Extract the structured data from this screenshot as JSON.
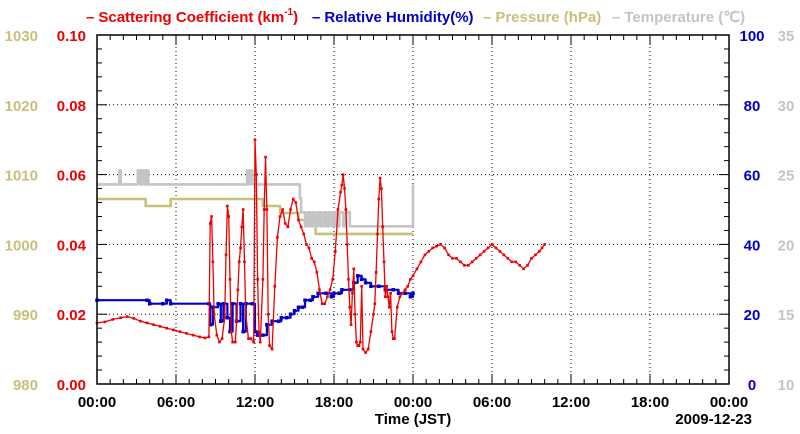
{
  "legend": {
    "scattering": {
      "label": "Scattering Coefficient (km",
      "sup": "-1",
      "close": ")",
      "color": "#ee0000"
    },
    "humidity": {
      "label": "Relative Humidity(%)",
      "color": "#0000cc"
    },
    "pressure": {
      "label": "Pressure (hPa)",
      "color": "#c8bf7a"
    },
    "temperature": {
      "label": "Temperature (℃)",
      "color": "#c4c4c4"
    },
    "dash": "–"
  },
  "footer": {
    "xlabel": "Time (JST)",
    "date": "2009-12-23"
  },
  "chart_data": {
    "type": "line",
    "title": "",
    "xlabel": "Time (JST)",
    "x_range_hours": [
      0,
      48
    ],
    "x_tick_labels": [
      "00:00",
      "06:00",
      "12:00",
      "18:00",
      "00:00",
      "06:00",
      "12:00",
      "18:00",
      "00:00"
    ],
    "grid": true,
    "axes": {
      "pressure": {
        "side": "left-outer",
        "range": [
          980,
          1030
        ],
        "ticks": [
          "980",
          "990",
          "1000",
          "1010",
          "1020",
          "1030"
        ],
        "color": "#c8bf7a"
      },
      "scattering": {
        "side": "left-inner",
        "range": [
          0,
          0.1
        ],
        "ticks": [
          "0.00",
          "0.02",
          "0.04",
          "0.06",
          "0.08",
          "0.10"
        ],
        "color": "#ee0000"
      },
      "humidity": {
        "side": "right-inner",
        "range": [
          0,
          100
        ],
        "ticks": [
          "0",
          "20",
          "40",
          "60",
          "80",
          "100"
        ],
        "color": "#0000cc"
      },
      "temperature": {
        "side": "right-outer",
        "range": [
          10,
          35
        ],
        "ticks": [
          "10",
          "15",
          "20",
          "25",
          "30",
          "35"
        ],
        "color": "#c4c4c4"
      }
    },
    "series": [
      {
        "name": "Pressure (hPa)",
        "axis": "pressure",
        "color": "#c8bf7a",
        "step": true,
        "points": [
          [
            0,
            1006.5
          ],
          [
            3.7,
            1005.5
          ],
          [
            5.6,
            1006.5
          ],
          [
            10.3,
            1006.5
          ],
          [
            12.5,
            1006.5
          ],
          [
            12.6,
            1005.5
          ],
          [
            13.8,
            1005.5
          ],
          [
            13.9,
            1004.5
          ],
          [
            15.2,
            1004.5
          ],
          [
            15.3,
            1003.5
          ],
          [
            16.5,
            1003.5
          ],
          [
            16.6,
            1001.5
          ],
          [
            24,
            1001.5
          ]
        ]
      },
      {
        "name": "Temperature (℃)",
        "axis": "temperature",
        "color": "#c4c4c4",
        "step": true,
        "points": [
          [
            0,
            24.3
          ],
          [
            1.6,
            24.3
          ],
          [
            1.7,
            25.3
          ],
          [
            1.8,
            24.3
          ],
          [
            3.0,
            24.3
          ],
          [
            3.1,
            25.3
          ],
          [
            3.3,
            24.3
          ],
          [
            3.4,
            25.3
          ],
          [
            3.6,
            24.3
          ],
          [
            3.7,
            25.3
          ],
          [
            3.9,
            24.3
          ],
          [
            10,
            24.3
          ],
          [
            11.3,
            24.3
          ],
          [
            11.4,
            25.3
          ],
          [
            11.5,
            24.3
          ],
          [
            11.6,
            25.3
          ],
          [
            11.8,
            24.3
          ],
          [
            15.3,
            24.3
          ],
          [
            15.4,
            23.3
          ],
          [
            15.5,
            22.3
          ],
          [
            15.7,
            22.3
          ],
          [
            15.8,
            21.3
          ],
          [
            16.0,
            22.3
          ],
          [
            16.2,
            21.3
          ],
          [
            16.4,
            22.3
          ],
          [
            16.6,
            21.3
          ],
          [
            16.8,
            22.3
          ],
          [
            17.0,
            21.3
          ],
          [
            17.2,
            22.3
          ],
          [
            17.4,
            21.3
          ],
          [
            17.6,
            22.3
          ],
          [
            17.8,
            21.3
          ],
          [
            18.0,
            22.3
          ],
          [
            18.2,
            21.3
          ],
          [
            18.4,
            22.3
          ],
          [
            18.6,
            22.3
          ],
          [
            18.7,
            21.3
          ],
          [
            18.9,
            22.3
          ],
          [
            19.2,
            21.3
          ],
          [
            19.7,
            21.3
          ],
          [
            19.8,
            21.3
          ],
          [
            24,
            21.3
          ],
          [
            24,
            24.3
          ]
        ]
      },
      {
        "name": "Relative Humidity(%)",
        "axis": "humidity",
        "color": "#0000cc",
        "step": true,
        "points": [
          [
            0,
            24
          ],
          [
            3.8,
            24
          ],
          [
            4.0,
            23
          ],
          [
            5.0,
            23
          ],
          [
            5.3,
            24
          ],
          [
            5.6,
            23
          ],
          [
            8.5,
            23
          ],
          [
            8.6,
            17
          ],
          [
            8.8,
            22
          ],
          [
            9.2,
            23
          ],
          [
            9.4,
            18
          ],
          [
            9.6,
            23
          ],
          [
            9.9,
            19
          ],
          [
            10.1,
            15
          ],
          [
            10.3,
            23
          ],
          [
            10.6,
            18
          ],
          [
            10.9,
            23
          ],
          [
            11.1,
            15
          ],
          [
            11.3,
            23
          ],
          [
            11.8,
            23
          ],
          [
            12.0,
            15
          ],
          [
            12.2,
            14
          ],
          [
            12.6,
            14
          ],
          [
            12.9,
            17
          ],
          [
            13.3,
            18
          ],
          [
            13.8,
            18
          ],
          [
            14.0,
            19
          ],
          [
            14.4,
            19
          ],
          [
            14.7,
            20
          ],
          [
            15.0,
            21
          ],
          [
            15.3,
            22
          ],
          [
            15.6,
            22
          ],
          [
            15.8,
            24
          ],
          [
            16.2,
            24
          ],
          [
            16.4,
            25
          ],
          [
            16.8,
            26
          ],
          [
            17.4,
            26
          ],
          [
            17.8,
            25
          ],
          [
            18.0,
            26
          ],
          [
            18.4,
            26
          ],
          [
            18.6,
            27
          ],
          [
            19.2,
            27
          ],
          [
            19.5,
            29
          ],
          [
            19.8,
            31
          ],
          [
            20.1,
            30
          ],
          [
            20.4,
            29
          ],
          [
            20.8,
            28
          ],
          [
            21.4,
            28
          ],
          [
            21.9,
            27
          ],
          [
            22.5,
            27
          ],
          [
            22.9,
            26
          ],
          [
            23.4,
            26
          ],
          [
            23.8,
            25
          ],
          [
            24.0,
            26
          ]
        ]
      },
      {
        "name": "Scattering Coefficient (km-1)",
        "axis": "scattering",
        "color": "#ee0000",
        "step": false,
        "points": [
          [
            0,
            0.0175
          ],
          [
            0.6,
            0.0178
          ],
          [
            1.2,
            0.0185
          ],
          [
            1.8,
            0.019
          ],
          [
            2.3,
            0.0193
          ],
          [
            2.8,
            0.0188
          ],
          [
            3.3,
            0.018
          ],
          [
            3.8,
            0.0175
          ],
          [
            4.3,
            0.017
          ],
          [
            4.8,
            0.0165
          ],
          [
            5.3,
            0.016
          ],
          [
            5.8,
            0.0155
          ],
          [
            6.3,
            0.015
          ],
          [
            6.8,
            0.0145
          ],
          [
            7.3,
            0.014
          ],
          [
            7.8,
            0.0135
          ],
          [
            8.2,
            0.0132
          ],
          [
            8.5,
            0.0135
          ],
          [
            8.6,
            0.046
          ],
          [
            8.7,
            0.048
          ],
          [
            8.8,
            0.035
          ],
          [
            8.9,
            0.02
          ],
          [
            9.1,
            0.014
          ],
          [
            9.3,
            0.012
          ],
          [
            9.5,
            0.013
          ],
          [
            9.7,
            0.019
          ],
          [
            9.8,
            0.037
          ],
          [
            9.9,
            0.051
          ],
          [
            10.0,
            0.048
          ],
          [
            10.1,
            0.03
          ],
          [
            10.2,
            0.015
          ],
          [
            10.3,
            0.012
          ],
          [
            10.5,
            0.012
          ],
          [
            10.6,
            0.018
          ],
          [
            10.7,
            0.027
          ],
          [
            10.8,
            0.035
          ],
          [
            10.9,
            0.039
          ],
          [
            11.0,
            0.045
          ],
          [
            11.1,
            0.05
          ],
          [
            11.2,
            0.035
          ],
          [
            11.3,
            0.02
          ],
          [
            11.5,
            0.013
          ],
          [
            11.7,
            0.013
          ],
          [
            11.9,
            0.012
          ],
          [
            12.0,
            0.07
          ],
          [
            12.1,
            0.06
          ],
          [
            12.2,
            0.03
          ],
          [
            12.3,
            0.015
          ],
          [
            12.4,
            0.012
          ],
          [
            12.6,
            0.03
          ],
          [
            12.7,
            0.05
          ],
          [
            12.8,
            0.065
          ],
          [
            12.9,
            0.05
          ],
          [
            13.0,
            0.02
          ],
          [
            13.1,
            0.011
          ],
          [
            13.3,
            0.01
          ],
          [
            13.5,
            0.028
          ],
          [
            13.7,
            0.042
          ],
          [
            13.9,
            0.048
          ],
          [
            14.1,
            0.05
          ],
          [
            14.3,
            0.046
          ],
          [
            14.5,
            0.045
          ],
          [
            14.7,
            0.05
          ],
          [
            14.9,
            0.053
          ],
          [
            15.1,
            0.052
          ],
          [
            15.3,
            0.047
          ],
          [
            15.5,
            0.045
          ],
          [
            15.7,
            0.043
          ],
          [
            15.9,
            0.04
          ],
          [
            16.1,
            0.039
          ],
          [
            16.3,
            0.036
          ],
          [
            16.5,
            0.035
          ],
          [
            16.7,
            0.032
          ],
          [
            16.9,
            0.027
          ],
          [
            17.1,
            0.023
          ],
          [
            17.3,
            0.023
          ],
          [
            17.5,
            0.025
          ],
          [
            17.7,
            0.027
          ],
          [
            17.9,
            0.03
          ],
          [
            18.1,
            0.038
          ],
          [
            18.3,
            0.05
          ],
          [
            18.5,
            0.055
          ],
          [
            18.6,
            0.057
          ],
          [
            18.7,
            0.06
          ],
          [
            18.8,
            0.056
          ],
          [
            18.9,
            0.05
          ],
          [
            19.0,
            0.04
          ],
          [
            19.1,
            0.03
          ],
          [
            19.2,
            0.022
          ],
          [
            19.3,
            0.017
          ],
          [
            19.4,
            0.026
          ],
          [
            19.5,
            0.033
          ],
          [
            19.6,
            0.02
          ],
          [
            19.7,
            0.012
          ],
          [
            19.8,
            0.011
          ],
          [
            19.9,
            0.011
          ],
          [
            20.0,
            0.012
          ],
          [
            20.1,
            0.028
          ],
          [
            20.2,
            0.01
          ],
          [
            20.4,
            0.009
          ],
          [
            20.6,
            0.01
          ],
          [
            20.8,
            0.015
          ],
          [
            21.0,
            0.02
          ],
          [
            21.1,
            0.023
          ],
          [
            21.2,
            0.032
          ],
          [
            21.3,
            0.043
          ],
          [
            21.4,
            0.053
          ],
          [
            21.5,
            0.059
          ],
          [
            21.6,
            0.056
          ],
          [
            21.7,
            0.045
          ],
          [
            21.8,
            0.035
          ],
          [
            21.9,
            0.025
          ],
          [
            22.0,
            0.028
          ],
          [
            22.1,
            0.025
          ],
          [
            22.2,
            0.022
          ],
          [
            22.3,
            0.026
          ],
          [
            22.4,
            0.015
          ],
          [
            22.5,
            0.013
          ],
          [
            22.6,
            0.013
          ],
          [
            22.8,
            0.022
          ],
          [
            23.0,
            0.025
          ],
          [
            23.2,
            0.026
          ],
          [
            23.4,
            0.027
          ],
          [
            23.6,
            0.028
          ],
          [
            23.8,
            0.03
          ],
          [
            24.0,
            0.031
          ],
          [
            24.3,
            0.033
          ],
          [
            24.6,
            0.035
          ],
          [
            24.9,
            0.037
          ],
          [
            25.2,
            0.038
          ],
          [
            25.5,
            0.039
          ],
          [
            25.8,
            0.0395
          ],
          [
            26.1,
            0.04
          ],
          [
            26.4,
            0.039
          ],
          [
            26.7,
            0.037
          ],
          [
            27.0,
            0.036
          ],
          [
            27.3,
            0.036
          ],
          [
            27.6,
            0.035
          ],
          [
            27.9,
            0.034
          ],
          [
            28.2,
            0.034
          ],
          [
            28.5,
            0.035
          ],
          [
            28.8,
            0.036
          ],
          [
            29.1,
            0.037
          ],
          [
            29.4,
            0.038
          ],
          [
            29.7,
            0.039
          ],
          [
            30.0,
            0.04
          ],
          [
            30.3,
            0.039
          ],
          [
            30.6,
            0.038
          ],
          [
            30.9,
            0.037
          ],
          [
            31.2,
            0.036
          ],
          [
            31.5,
            0.035
          ],
          [
            31.8,
            0.035
          ],
          [
            32.1,
            0.034
          ],
          [
            32.4,
            0.033
          ],
          [
            32.7,
            0.034
          ],
          [
            33.0,
            0.036
          ],
          [
            33.3,
            0.037
          ],
          [
            33.6,
            0.038
          ],
          [
            33.8,
            0.039
          ],
          [
            34.0,
            0.04
          ]
        ]
      }
    ]
  }
}
